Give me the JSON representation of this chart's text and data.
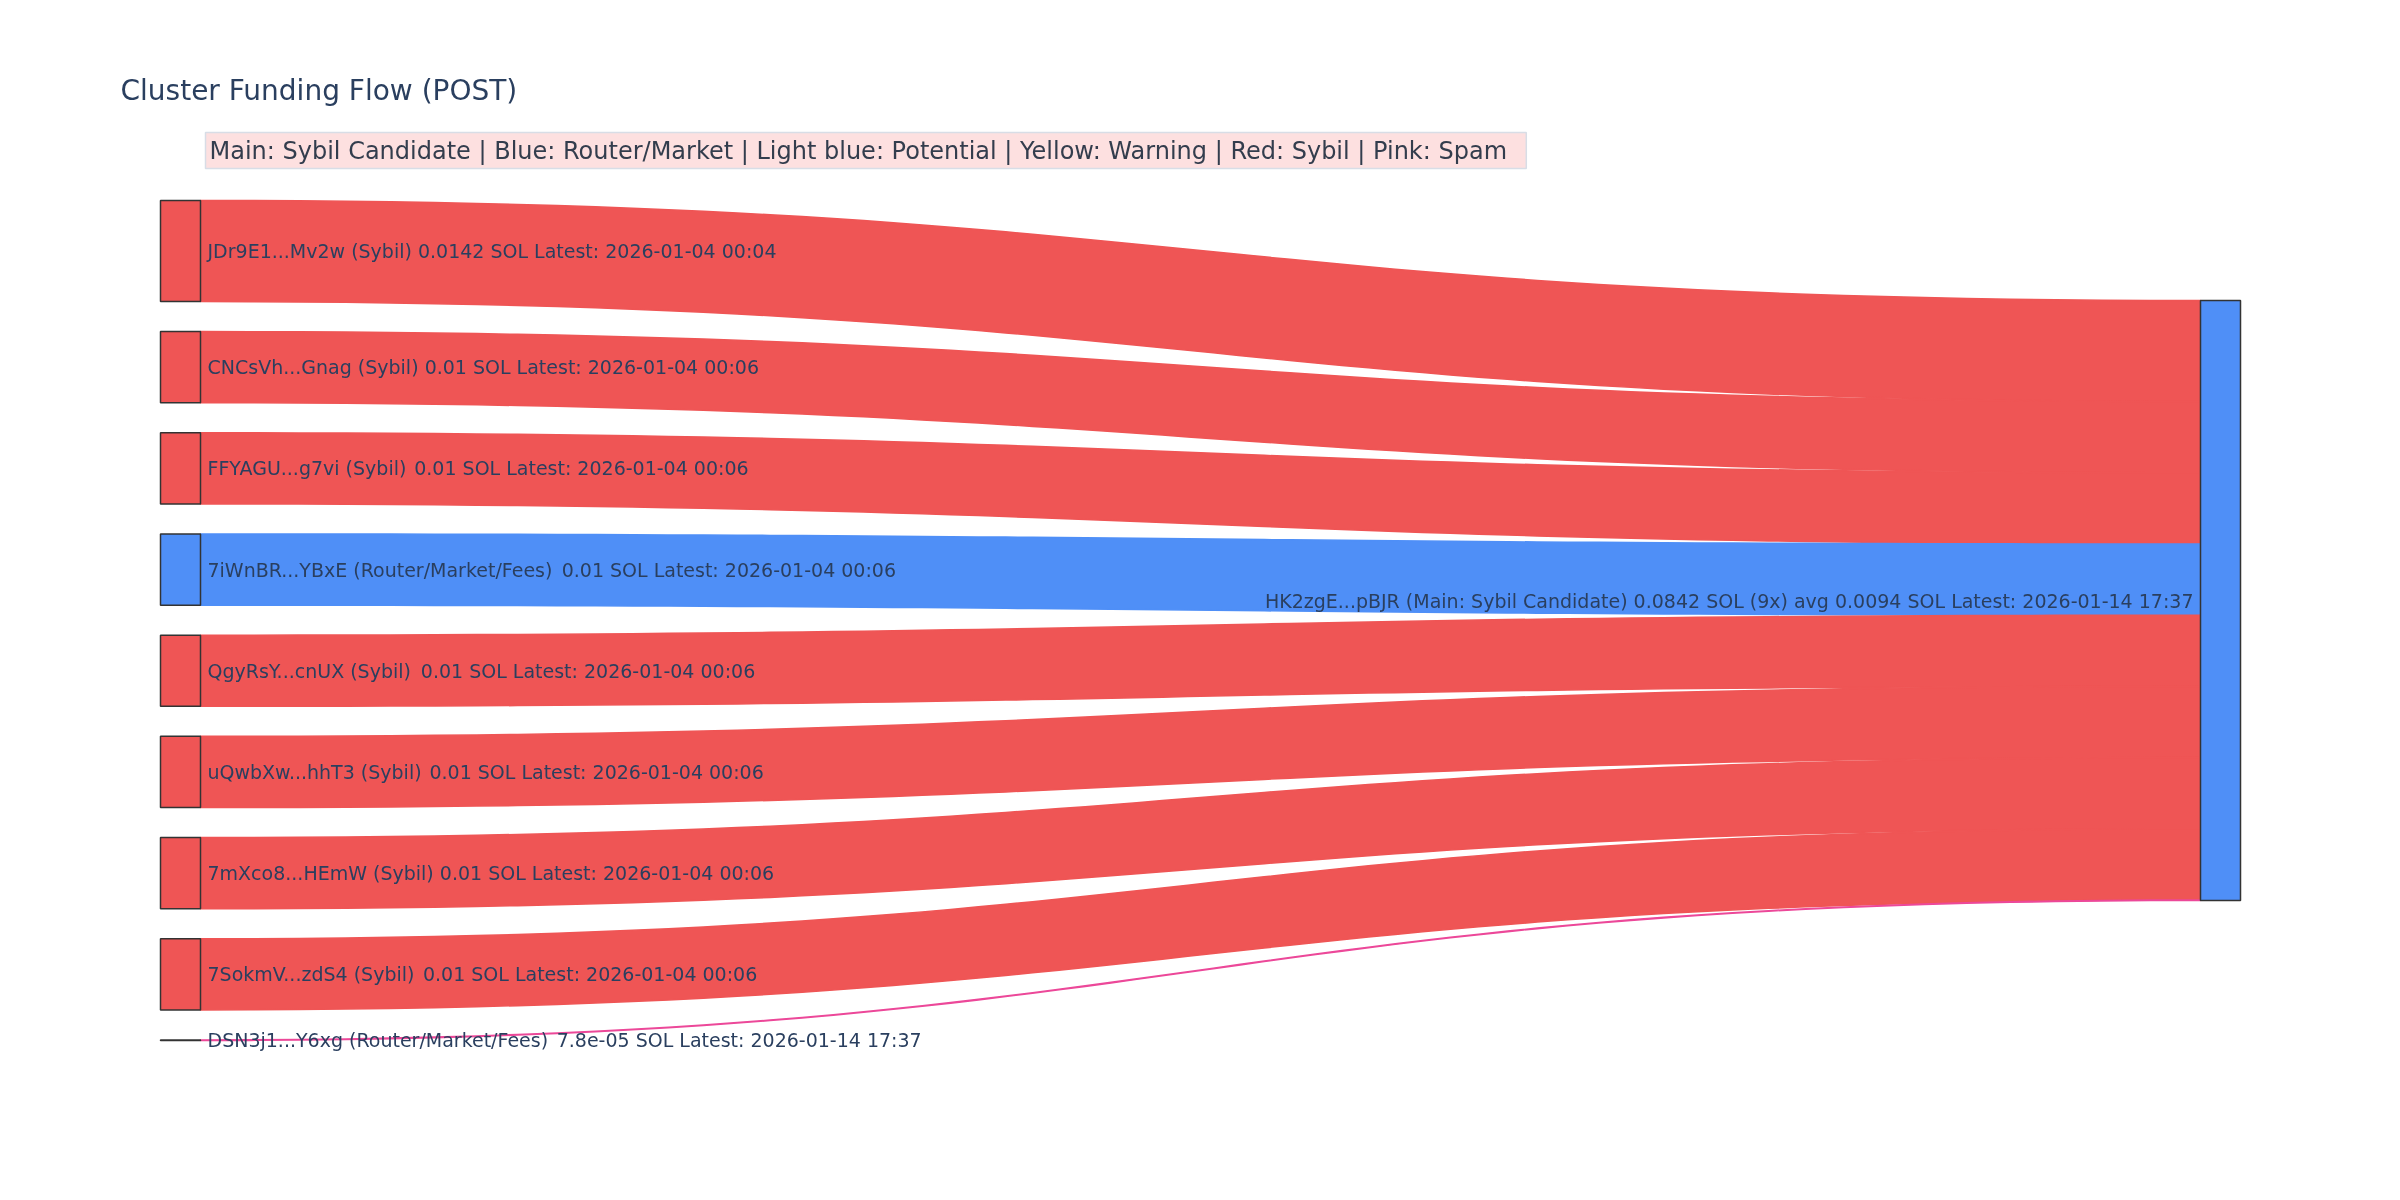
{
  "chart_data": {
    "type": "other",
    "title": "Cluster Funding Flow (POST)",
    "categories": [
      "JDr9E1...Mv2w (Sybil)",
      "CNCsVh...Gnag (Sybil)",
      "FFYAGU...g7vi (Sybil)",
      "7iWnBR...YBxE (Router/Market/Fees)",
      "QgyRsY...cnUX (Sybil)",
      "uQwbXw...hhT3 (Sybil)",
      "7mXco8...HEmW (Sybil)",
      "7SokmV...zdS4 (Sybil)",
      "DSN3j1...Y6xg (Router/Market/Fees)"
    ],
    "values": [
      0.0142,
      0.01,
      0.01,
      0.01,
      0.01,
      0.01,
      0.01,
      0.01,
      7.8e-05
    ],
    "value_labels": [
      "0.0142",
      "0.01",
      "0.01",
      "0.01",
      "0.01",
      "0.01",
      "0.01",
      "0.01",
      "7.8e-05"
    ],
    "y2_categories": [
      "SOL Latest: 2026-01-04 00:04",
      "SOL Latest: 2026-01-04 00:06",
      "SOL Latest: 2026-01-04 00:06",
      "SOL Latest: 2026-01-04 00:06",
      "SOL Latest: 2026-01-04 00:06",
      "SOL Latest: 2026-01-04 00:06",
      "SOL Latest: 2026-01-04 00:06",
      "SOL Latest: 2026-01-04 00:06",
      "SOL Latest: 2026-01-14 17:37"
    ],
    "colors": [
      "#ef5555",
      "#ef5555",
      "#ef5555",
      "#4f8ff7",
      "#ef5555",
      "#ef5555",
      "#ef5555",
      "#ef5555",
      "#ec4899"
    ],
    "annotations": [
      "Main: Sybil Candidate  |  Blue: Router/Market | Light blue: Potential | Yellow: Warning | Red: Sybil | Pink: Spam",
      "HK2zgE...pBJR (Main: Sybil Candidate) 0.0842 SOL (9x) avg 0.0094 SOL Latest: 2026-01-14 17:37"
    ]
  }
}
